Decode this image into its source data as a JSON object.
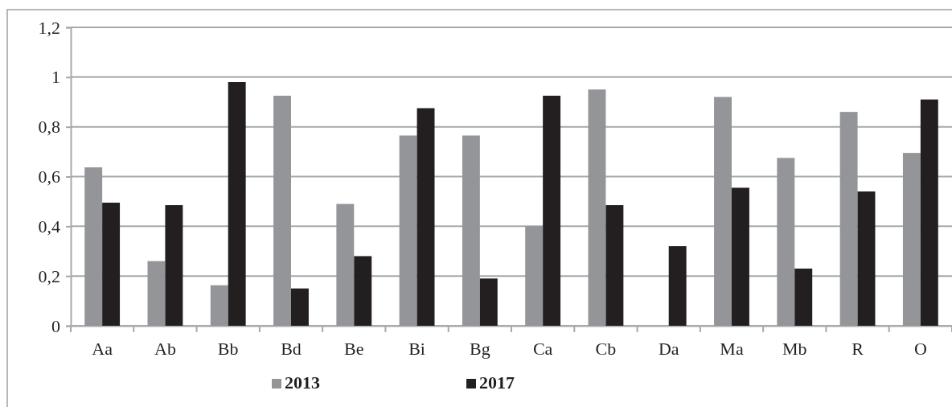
{
  "chart_data": {
    "type": "bar",
    "categories": [
      "Aa",
      "Ab",
      "Bb",
      "Bd",
      "Be",
      "Bi",
      "Bg",
      "Ca",
      "Cb",
      "Da",
      "Ma",
      "Mb",
      "R",
      "O"
    ],
    "series": [
      {
        "name": "2013",
        "color": "#939598",
        "values": [
          0.637,
          0.26,
          0.163,
          0.925,
          0.49,
          0.765,
          0.765,
          0.4,
          0.95,
          0,
          0.92,
          0.675,
          0.86,
          0.695
        ]
      },
      {
        "name": "2017",
        "color": "#231f20",
        "values": [
          0.495,
          0.485,
          0.98,
          0.15,
          0.28,
          0.875,
          0.19,
          0.925,
          0.485,
          0.32,
          0.555,
          0.23,
          0.54,
          0.91
        ]
      }
    ],
    "ylim": [
      0,
      1.2
    ],
    "yticks": [
      0,
      {
        "value": 0.2,
        "label": "0,2"
      },
      {
        "value": 0.4,
        "label": "0,4"
      },
      {
        "value": 0.6,
        "label": "0,6"
      },
      {
        "value": 0.8,
        "label": "0,8"
      },
      1,
      {
        "value": 1.2,
        "label": "1,2"
      }
    ],
    "grid": "y",
    "legend": "bottom"
  }
}
